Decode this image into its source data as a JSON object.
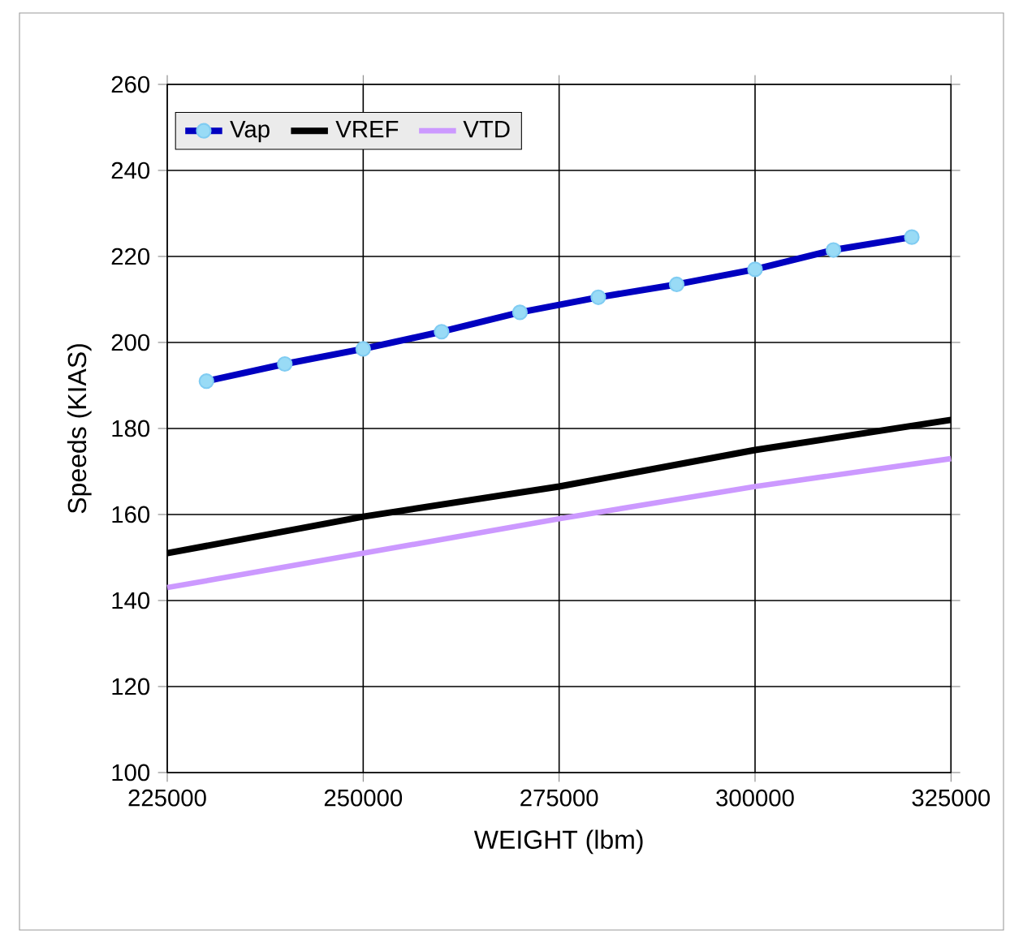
{
  "chart_data": {
    "type": "line",
    "xlabel": "WEIGHT (lbm)",
    "ylabel": "Speeds (KIAS)",
    "x": [
      230000,
      240000,
      250000,
      260000,
      270000,
      280000,
      290000,
      300000,
      310000,
      320000
    ],
    "series": [
      {
        "name": "Vap",
        "color": "#0000c0",
        "marker": "circle",
        "values": [
          191,
          195,
          198.5,
          202.5,
          207,
          210.5,
          213.5,
          217,
          221.5,
          224.5
        ]
      },
      {
        "name": "VREF",
        "color": "#000000",
        "x": [
          225000,
          250000,
          275000,
          300000,
          325000
        ],
        "values": [
          151,
          159.5,
          166.5,
          175,
          182
        ]
      },
      {
        "name": "VTD",
        "color": "#cc99ff",
        "x": [
          225000,
          250000,
          275000,
          300000,
          325000
        ],
        "values": [
          143,
          151,
          159,
          166.5,
          173
        ]
      }
    ],
    "xlim": [
      225000,
      325000
    ],
    "xticks": [
      225000,
      250000,
      275000,
      300000,
      325000
    ],
    "ylim": [
      100,
      260
    ],
    "yticks": [
      100,
      120,
      140,
      160,
      180,
      200,
      220,
      240,
      260
    ],
    "grid": true,
    "legend": "top left",
    "line_style": "solid"
  }
}
